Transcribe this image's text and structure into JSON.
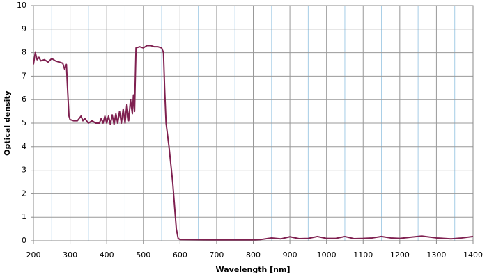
{
  "chart_data": {
    "type": "line",
    "x_label": "Wavelength [nm]",
    "y_label": "Optical density",
    "x": [
      200,
      205,
      210,
      215,
      220,
      230,
      240,
      250,
      260,
      270,
      280,
      285,
      290,
      293,
      297,
      300,
      310,
      320,
      330,
      335,
      340,
      350,
      360,
      370,
      380,
      385,
      390,
      395,
      400,
      405,
      410,
      415,
      420,
      425,
      430,
      435,
      440,
      445,
      450,
      455,
      460,
      465,
      470,
      473,
      476,
      480,
      490,
      500,
      510,
      520,
      530,
      540,
      550,
      555,
      558,
      562,
      570,
      580,
      590,
      595,
      600,
      700,
      800,
      820,
      850,
      875,
      900,
      925,
      950,
      975,
      1000,
      1025,
      1050,
      1075,
      1100,
      1125,
      1150,
      1175,
      1200,
      1230,
      1260,
      1300,
      1340,
      1370,
      1400
    ],
    "series": [
      {
        "name": "Optical density",
        "color": "#7f2050",
        "values": [
          7.5,
          8.0,
          7.7,
          7.8,
          7.65,
          7.7,
          7.6,
          7.75,
          7.65,
          7.6,
          7.55,
          7.3,
          7.5,
          6.5,
          5.3,
          5.15,
          5.1,
          5.1,
          5.3,
          5.1,
          5.2,
          5.0,
          5.1,
          5.0,
          5.0,
          5.2,
          5.0,
          5.3,
          5.0,
          5.3,
          4.95,
          5.35,
          4.95,
          5.4,
          5.0,
          5.5,
          5.0,
          5.6,
          5.0,
          5.8,
          5.1,
          6.0,
          5.4,
          6.2,
          5.5,
          8.2,
          8.25,
          8.2,
          8.3,
          8.3,
          8.25,
          8.25,
          8.2,
          8.0,
          6.5,
          5.0,
          4.0,
          2.5,
          0.5,
          0.1,
          0.05,
          0.04,
          0.04,
          0.05,
          0.12,
          0.08,
          0.17,
          0.09,
          0.1,
          0.18,
          0.1,
          0.1,
          0.18,
          0.09,
          0.1,
          0.12,
          0.18,
          0.12,
          0.1,
          0.15,
          0.2,
          0.12,
          0.08,
          0.12,
          0.18
        ]
      }
    ],
    "xlim": [
      200,
      1400
    ],
    "ylim": [
      0,
      10
    ],
    "xticks": [
      200,
      300,
      400,
      500,
      600,
      700,
      800,
      900,
      1000,
      1100,
      1200,
      1300,
      1400
    ],
    "yticks": [
      0,
      1,
      2,
      3,
      4,
      5,
      6,
      7,
      8,
      9,
      10
    ],
    "grid": true
  }
}
